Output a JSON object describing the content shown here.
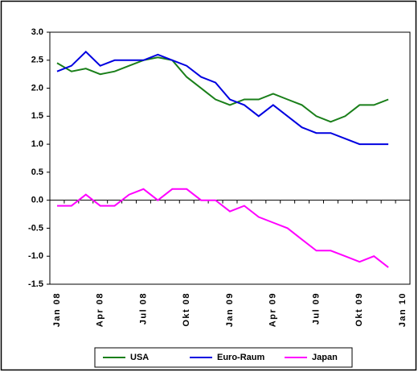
{
  "chart_data": {
    "type": "line",
    "categories": [
      "Jan 08",
      null,
      null,
      "Apr 08",
      null,
      null,
      "Jul 08",
      null,
      null,
      "Okt 08",
      null,
      null,
      "Jan 09",
      null,
      null,
      "Apr 09",
      null,
      null,
      "Jul 09",
      null,
      null,
      "Okt 09",
      null,
      null,
      "Jan 10"
    ],
    "series": [
      {
        "name": "USA",
        "color": "#1a7f1a",
        "values": [
          2.45,
          2.3,
          2.35,
          2.25,
          2.3,
          2.4,
          2.5,
          2.55,
          2.5,
          2.2,
          2.0,
          1.8,
          1.7,
          1.8,
          1.8,
          1.9,
          1.8,
          1.7,
          1.5,
          1.4,
          1.5,
          1.7,
          1.7,
          1.8,
          null
        ]
      },
      {
        "name": "Euro-Raum",
        "color": "#0000e0",
        "values": [
          2.3,
          2.4,
          2.65,
          2.4,
          2.5,
          2.5,
          2.5,
          2.6,
          2.5,
          2.4,
          2.2,
          2.1,
          1.8,
          1.7,
          1.5,
          1.7,
          1.5,
          1.3,
          1.2,
          1.2,
          1.1,
          1.0,
          1.0,
          1.0,
          null
        ]
      },
      {
        "name": "Japan",
        "color": "#ff00ff",
        "values": [
          -0.1,
          -0.1,
          0.1,
          -0.1,
          -0.1,
          0.1,
          0.2,
          0.0,
          0.2,
          0.2,
          0.0,
          0.0,
          -0.2,
          -0.1,
          -0.3,
          -0.4,
          -0.5,
          -0.7,
          -0.9,
          -0.9,
          -1.0,
          -1.1,
          -1.0,
          -1.2,
          null
        ]
      }
    ],
    "ylim": [
      -1.5,
      3.0
    ],
    "yticks": [
      {
        "value": 3.0,
        "label": "3.0"
      },
      2.5,
      {
        "value": 2.0,
        "label": "2.0"
      },
      1.5,
      {
        "value": 1.0,
        "label": "1.0"
      },
      0.5,
      {
        "value": 0.0,
        "label": "0.0"
      },
      -0.5,
      {
        "value": -1.0,
        "label": "-1.0"
      },
      -1.5
    ],
    "legend": "bottom"
  }
}
